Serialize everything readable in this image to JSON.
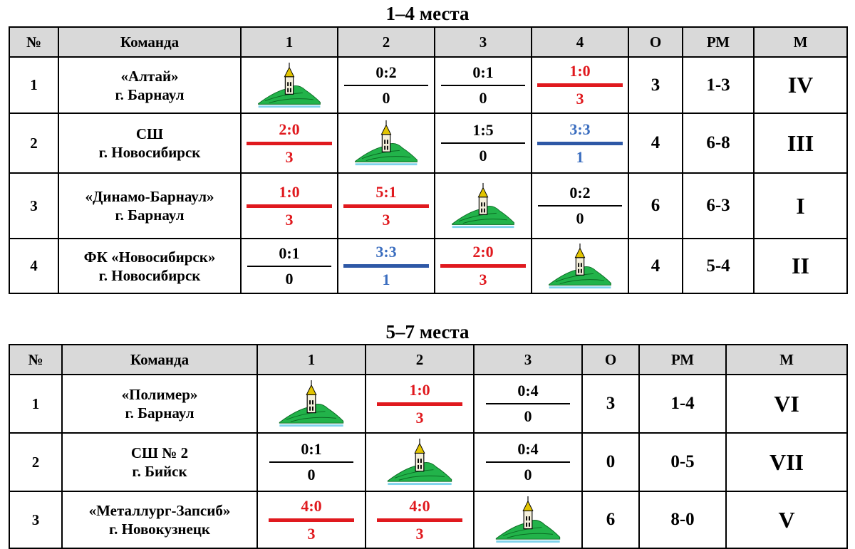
{
  "colors": {
    "win": "#e0191e",
    "draw": "#3a6dbf",
    "header_bg": "#d9d9d9"
  },
  "table1": {
    "title": "1–4  места",
    "headers": [
      "№",
      "Команда",
      "1",
      "2",
      "3",
      "4",
      "О",
      "РМ",
      "М"
    ],
    "rows": [
      {
        "num": "1",
        "team_line1": "«Алтай»",
        "team_line2": "г. Барнаул",
        "c1": {
          "logo": "team-logo-icon"
        },
        "c2": {
          "score": "0:2",
          "points": "0",
          "result": "loss"
        },
        "c3": {
          "score": "0:1",
          "points": "0",
          "result": "loss"
        },
        "c4": {
          "score": "1:0",
          "points": "3",
          "result": "win"
        },
        "o": "3",
        "rm": "1-3",
        "m": "IV"
      },
      {
        "num": "2",
        "team_line1": "СШ",
        "team_line2": "г. Новосибирск",
        "c1": {
          "score": "2:0",
          "points": "3",
          "result": "win"
        },
        "c2": {
          "logo": "team-logo-icon"
        },
        "c3": {
          "score": "1:5",
          "points": "0",
          "result": "loss"
        },
        "c4": {
          "score": "3:3",
          "points": "1",
          "result": "draw"
        },
        "o": "4",
        "rm": "6-8",
        "m": "III"
      },
      {
        "num": "3",
        "team_line1": "«Динамо-Барнаул»",
        "team_line2": "г. Барнаул",
        "c1": {
          "score": "1:0",
          "points": "3",
          "result": "win"
        },
        "c2": {
          "score": "5:1",
          "points": "3",
          "result": "win"
        },
        "c3": {
          "logo": "team-logo-icon"
        },
        "c4": {
          "score": "0:2",
          "points": "0",
          "result": "loss"
        },
        "o": "6",
        "rm": "6-3",
        "m": "I"
      },
      {
        "num": "4",
        "team_line1": "ФК «Новосибирск»",
        "team_line2": "г. Новосибирск",
        "c1": {
          "score": "0:1",
          "points": "0",
          "result": "loss"
        },
        "c2": {
          "score": "3:3",
          "points": "1",
          "result": "draw"
        },
        "c3": {
          "score": "2:0",
          "points": "3",
          "result": "win"
        },
        "c4": {
          "logo": "team-logo-icon"
        },
        "o": "4",
        "rm": "5-4",
        "m": "II"
      }
    ]
  },
  "table2": {
    "title": "5–7  места",
    "headers": [
      "№",
      "Команда",
      "1",
      "2",
      "3",
      "О",
      "РМ",
      "М"
    ],
    "rows": [
      {
        "num": "1",
        "team_line1": "«Полимер»",
        "team_line2": "г. Барнаул",
        "c1": {
          "logo": "team-logo-icon"
        },
        "c2": {
          "score": "1:0",
          "points": "3",
          "result": "win"
        },
        "c3": {
          "score": "0:4",
          "points": "0",
          "result": "loss"
        },
        "o": "3",
        "rm": "1-4",
        "m": "VI"
      },
      {
        "num": "2",
        "team_line1": "СШ № 2",
        "team_line2": "г. Бийск",
        "c1": {
          "score": "0:1",
          "points": "0",
          "result": "loss"
        },
        "c2": {
          "logo": "team-logo-icon"
        },
        "c3": {
          "score": "0:4",
          "points": "0",
          "result": "loss"
        },
        "o": "0",
        "rm": "0-5",
        "m": "VII"
      },
      {
        "num": "3",
        "team_line1": "«Металлург-Запсиб»",
        "team_line2": "г. Новокузнецк",
        "c1": {
          "score": "4:0",
          "points": "3",
          "result": "win"
        },
        "c2": {
          "score": "4:0",
          "points": "3",
          "result": "win"
        },
        "c3": {
          "logo": "team-logo-icon"
        },
        "o": "6",
        "rm": "8-0",
        "m": "V"
      }
    ]
  }
}
